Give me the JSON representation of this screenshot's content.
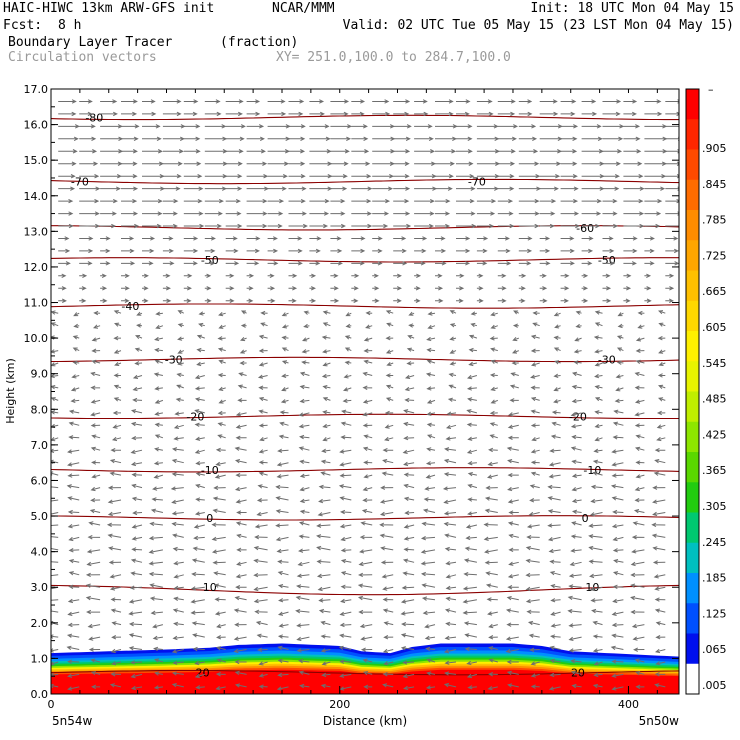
{
  "header": {
    "model_line": "HAIC-HIWC 13km ARW-GFS init",
    "org": "NCAR/MMM",
    "init_line": "Init: 18 UTC Mon 04 May 15",
    "fcst_label": "Fcst:",
    "fcst_value": "8 h",
    "valid_line": "Valid: 02 UTC Tue 05 May 15 (23 LST Mon 04 May 15)",
    "field_name": "Boundary Layer Tracer",
    "field_units": "(fraction)",
    "vector_label": "Circulation vectors",
    "xy_label": "XY= 251.0,100.0 to 284.7,100.0"
  },
  "chart_data": {
    "type": "heatmap",
    "ylabel": "Height (km)",
    "xlabel": "Distance (km)",
    "xlim": [
      0,
      435
    ],
    "ylim": [
      0,
      17
    ],
    "x_ticks": [
      {
        "v": 0,
        "label": "0"
      },
      {
        "v": 200,
        "label": "200"
      },
      {
        "v": 400,
        "label": "400"
      }
    ],
    "y_ticks": [
      {
        "v": 0,
        "label": "0.0"
      },
      {
        "v": 1,
        "label": "1.0"
      },
      {
        "v": 2,
        "label": "2.0"
      },
      {
        "v": 3,
        "label": "3.0"
      },
      {
        "v": 4,
        "label": "4.0"
      },
      {
        "v": 5,
        "label": "5.0"
      },
      {
        "v": 6,
        "label": "6.0"
      },
      {
        "v": 7,
        "label": "7.0"
      },
      {
        "v": 8,
        "label": "8.0"
      },
      {
        "v": 9,
        "label": "9.0"
      },
      {
        "v": 10,
        "label": "10.0"
      },
      {
        "v": 11,
        "label": "11.0"
      },
      {
        "v": 12,
        "label": "12.0"
      },
      {
        "v": 13,
        "label": "13.0"
      },
      {
        "v": 14,
        "label": "14.0"
      },
      {
        "v": 15,
        "label": "15.0"
      },
      {
        "v": 16,
        "label": "16.0"
      },
      {
        "v": 17,
        "label": "17.0"
      }
    ],
    "left_end_label": "5n54w",
    "right_end_label": "5n50w",
    "tracer_top_km": [
      {
        "x": 0,
        "y": 1.15
      },
      {
        "x": 40,
        "y": 1.2
      },
      {
        "x": 80,
        "y": 1.25
      },
      {
        "x": 110,
        "y": 1.3
      },
      {
        "x": 130,
        "y": 1.38
      },
      {
        "x": 160,
        "y": 1.42
      },
      {
        "x": 200,
        "y": 1.35
      },
      {
        "x": 215,
        "y": 1.2
      },
      {
        "x": 235,
        "y": 1.15
      },
      {
        "x": 250,
        "y": 1.32
      },
      {
        "x": 270,
        "y": 1.42
      },
      {
        "x": 320,
        "y": 1.42
      },
      {
        "x": 340,
        "y": 1.35
      },
      {
        "x": 360,
        "y": 1.2
      },
      {
        "x": 400,
        "y": 1.12
      },
      {
        "x": 435,
        "y": 1.05
      }
    ],
    "temperature_contours": [
      {
        "value": 20,
        "label": "20",
        "height_km": 0.6,
        "label_x": [
          105,
          365
        ]
      },
      {
        "value": 10,
        "label": "10",
        "height_km": 3.0,
        "label_x": [
          110,
          375
        ]
      },
      {
        "value": 0,
        "label": "0",
        "height_km": 4.95,
        "label_x": [
          110,
          370
        ]
      },
      {
        "value": -10,
        "label": "-10",
        "height_km": 6.3,
        "label_x": [
          110,
          375
        ]
      },
      {
        "value": -20,
        "label": "-20",
        "height_km": 7.8,
        "label_x": [
          100,
          365
        ]
      },
      {
        "value": -30,
        "label": "-30",
        "height_km": 9.4,
        "label_x": [
          85,
          385
        ]
      },
      {
        "value": -40,
        "label": "-40",
        "height_km": 10.9,
        "label_x": [
          55
        ]
      },
      {
        "value": -50,
        "label": "-50",
        "height_km": 12.2,
        "label_x": [
          110,
          385
        ]
      },
      {
        "value": -60,
        "label": "-60",
        "height_km": 13.1,
        "label_x": [
          370
        ]
      },
      {
        "value": -70,
        "label": "-70",
        "height_km": 14.4,
        "label_x": [
          20,
          295
        ]
      },
      {
        "value": -80,
        "label": "-80",
        "height_km": 16.2,
        "label_x": [
          30
        ]
      }
    ],
    "colorbar": {
      "labels": [
        ".905",
        ".845",
        ".785",
        ".725",
        ".665",
        ".605",
        ".545",
        ".485",
        ".425",
        ".365",
        ".305",
        ".245",
        ".185",
        ".125",
        ".065",
        ".005"
      ],
      "top_label": "–",
      "colors": [
        "#ff0000",
        "#ff2600",
        "#ff4a00",
        "#ff6c00",
        "#ff8c00",
        "#ffa600",
        "#ffc000",
        "#ffd800",
        "#fff000",
        "#e8f400",
        "#c0ee00",
        "#8ee600",
        "#5ad800",
        "#22cc10",
        "#00c870",
        "#00c0c0",
        "#0090ff",
        "#0050ff",
        "#0010ee",
        "#ffffff"
      ]
    },
    "wind_vectors": {
      "description_levels": [
        {
          "z": 16.5,
          "dir": 1,
          "speed": 0.8
        },
        {
          "z": 15.5,
          "dir": 1,
          "speed": 1.0
        },
        {
          "z": 14.5,
          "dir": 1,
          "speed": 1.0
        },
        {
          "z": 13.5,
          "dir": 1,
          "speed": 0.9
        },
        {
          "z": 12.5,
          "dir": 1,
          "speed": 0.6
        },
        {
          "z": 11.5,
          "dir": 1,
          "speed": 0.35
        },
        {
          "z": 10.5,
          "dir": -1,
          "speed": 0.3
        },
        {
          "z": 9.5,
          "dir": -1,
          "speed": 0.35
        },
        {
          "z": 8.5,
          "dir": -1,
          "speed": 0.4
        },
        {
          "z": 7.5,
          "dir": -1,
          "speed": 0.45
        },
        {
          "z": 6.5,
          "dir": -1,
          "speed": 0.5
        },
        {
          "z": 5.5,
          "dir": -1,
          "speed": 0.55
        },
        {
          "z": 4.5,
          "dir": -1,
          "speed": 0.6
        },
        {
          "z": 3.5,
          "dir": -1,
          "speed": 0.6
        },
        {
          "z": 2.5,
          "dir": -1,
          "speed": 0.6
        },
        {
          "z": 1.5,
          "dir": -1,
          "speed": 0.55
        },
        {
          "z": 0.5,
          "dir": -1,
          "speed": 0.5
        }
      ]
    }
  }
}
